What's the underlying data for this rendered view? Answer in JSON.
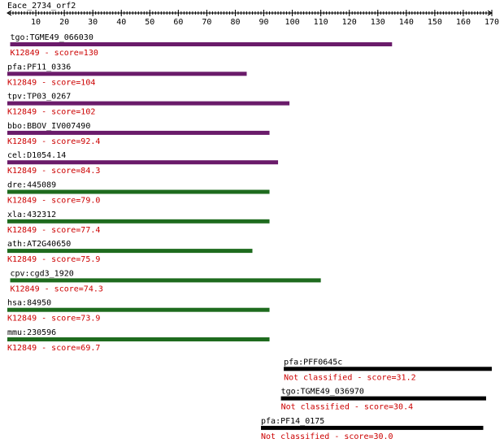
{
  "query": {
    "name": "Eace_2734_orf2",
    "length": 170
  },
  "ruler": {
    "min": 0,
    "max": 170,
    "ticks": [
      10,
      20,
      30,
      40,
      50,
      60,
      70,
      80,
      90,
      100,
      110,
      120,
      130,
      140,
      150,
      160,
      170
    ]
  },
  "colors": {
    "purple": "#6a1b6a",
    "green": "#1e6b1e",
    "black": "#000000",
    "label": "#000000",
    "score": "#cc0000"
  },
  "hits": [
    {
      "name": "tgo:TGME49_066030",
      "score_text": "K12849 - score=130",
      "start": 1,
      "end": 135,
      "color": "purple"
    },
    {
      "name": "pfa:PF11_0336",
      "score_text": "K12849 - score=104",
      "start": 0,
      "end": 84,
      "color": "purple"
    },
    {
      "name": "tpv:TP03_0267",
      "score_text": "K12849 - score=102",
      "start": 0,
      "end": 99,
      "color": "purple"
    },
    {
      "name": "bbo:BBOV_IV007490",
      "score_text": "K12849 - score=92.4",
      "start": 0,
      "end": 92,
      "color": "purple"
    },
    {
      "name": "cel:D1054.14",
      "score_text": "K12849 - score=84.3",
      "start": 0,
      "end": 95,
      "color": "purple"
    },
    {
      "name": "dre:445089",
      "score_text": "K12849 - score=79.0",
      "start": 0,
      "end": 92,
      "color": "green"
    },
    {
      "name": "xla:432312",
      "score_text": "K12849 - score=77.4",
      "start": 0,
      "end": 92,
      "color": "green"
    },
    {
      "name": "ath:AT2G40650",
      "score_text": "K12849 - score=75.9",
      "start": 0,
      "end": 86,
      "color": "green"
    },
    {
      "name": "cpv:cgd3_1920",
      "score_text": "K12849 - score=74.3",
      "start": 1,
      "end": 110,
      "color": "green"
    },
    {
      "name": "hsa:84950",
      "score_text": "K12849 - score=73.9",
      "start": 0,
      "end": 92,
      "color": "green"
    },
    {
      "name": "mmu:230596",
      "score_text": "K12849 - score=69.7",
      "start": 0,
      "end": 92,
      "color": "green"
    },
    {
      "name": "pfa:PFF0645c",
      "score_text": "Not classified - score=31.2",
      "start": 97,
      "end": 170,
      "color": "black"
    },
    {
      "name": "tgo:TGME49_036970",
      "score_text": "Not classified - score=30.4",
      "start": 96,
      "end": 168,
      "color": "black"
    },
    {
      "name": "pfa:PF14_0175",
      "score_text": "Not classified - score=30.0",
      "start": 89,
      "end": 167,
      "color": "black"
    }
  ]
}
